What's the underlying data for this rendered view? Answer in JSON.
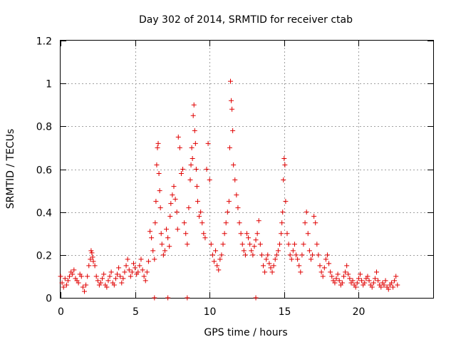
{
  "chart_data": {
    "type": "scatter",
    "title": "Day 302 of 2014, SRMTID for receiver ctab",
    "xlabel": "GPS time / hours",
    "ylabel": "SRMTID / TECUs",
    "xlim": [
      0,
      25
    ],
    "ylim": [
      0,
      1.2
    ],
    "xticks": [
      0,
      5,
      10,
      15,
      20
    ],
    "xtick_labels": [
      "0",
      "5",
      "10",
      "15",
      "20"
    ],
    "yticks": [
      0,
      0.2,
      0.4,
      0.6,
      0.8,
      1.0,
      1.2
    ],
    "ytick_labels": [
      "0",
      "0.2",
      "0.4",
      "0.6",
      "0.8",
      "1",
      "1.2"
    ],
    "grid": true,
    "marker": "plus",
    "color": "#e00000",
    "series": [
      {
        "name": "SRMTID",
        "x": [
          0.0,
          0.1,
          0.2,
          0.3,
          0.4,
          0.5,
          0.6,
          0.7,
          0.8,
          0.9,
          1.0,
          1.1,
          1.2,
          1.3,
          1.4,
          1.5,
          1.6,
          1.7,
          1.8,
          1.9,
          2.0,
          2.05,
          2.1,
          2.15,
          2.2,
          2.3,
          2.4,
          2.5,
          2.6,
          2.7,
          2.8,
          2.9,
          3.0,
          3.1,
          3.2,
          3.3,
          3.4,
          3.5,
          3.6,
          3.7,
          3.8,
          3.9,
          4.0,
          4.1,
          4.2,
          4.3,
          4.4,
          4.5,
          4.6,
          4.7,
          4.8,
          4.9,
          5.0,
          5.1,
          5.2,
          5.3,
          5.4,
          5.5,
          5.6,
          5.7,
          5.8,
          5.9,
          6.0,
          6.1,
          6.2,
          6.3,
          6.35,
          6.4,
          6.45,
          6.5,
          6.55,
          6.6,
          6.65,
          6.7,
          6.75,
          6.8,
          6.9,
          7.0,
          7.1,
          7.2,
          7.3,
          7.35,
          7.4,
          7.5,
          7.6,
          7.7,
          7.8,
          7.85,
          7.9,
          8.0,
          8.1,
          8.2,
          8.3,
          8.4,
          8.5,
          8.6,
          8.7,
          8.75,
          8.8,
          8.85,
          8.9,
          8.95,
          9.0,
          9.05,
          9.1,
          9.15,
          9.2,
          9.3,
          9.4,
          9.5,
          9.6,
          9.7,
          9.8,
          9.9,
          10.0,
          10.1,
          10.2,
          10.3,
          10.4,
          10.5,
          10.6,
          10.7,
          10.8,
          10.9,
          11.0,
          11.1,
          11.2,
          11.3,
          11.35,
          11.4,
          11.45,
          11.5,
          11.55,
          11.6,
          11.7,
          11.8,
          11.9,
          12.0,
          12.1,
          12.2,
          12.3,
          12.4,
          12.5,
          12.6,
          12.7,
          12.8,
          12.9,
          13.0,
          13.1,
          13.2,
          13.3,
          13.4,
          13.5,
          13.6,
          13.7,
          13.8,
          13.9,
          14.0,
          14.1,
          14.2,
          14.3,
          14.4,
          14.5,
          14.6,
          14.7,
          14.8,
          14.85,
          14.9,
          14.95,
          15.0,
          15.05,
          15.1,
          15.2,
          15.3,
          15.4,
          15.5,
          15.6,
          15.7,
          15.8,
          15.9,
          16.0,
          16.1,
          16.2,
          16.3,
          16.4,
          16.5,
          16.6,
          16.7,
          16.8,
          16.9,
          17.0,
          17.1,
          17.2,
          17.3,
          17.4,
          17.5,
          17.6,
          17.7,
          17.8,
          17.9,
          18.0,
          18.1,
          18.2,
          18.3,
          18.4,
          18.5,
          18.6,
          18.7,
          18.8,
          18.9,
          19.0,
          19.1,
          19.2,
          19.3,
          19.4,
          19.5,
          19.6,
          19.7,
          19.8,
          19.9,
          20.0,
          20.1,
          20.2,
          20.3,
          20.4,
          20.5,
          20.6,
          20.7,
          20.8,
          20.9,
          21.0,
          21.1,
          21.2,
          21.3,
          21.4,
          21.5,
          21.6,
          21.7,
          21.8,
          21.9,
          22.0,
          22.1,
          22.2,
          22.3,
          22.4,
          22.5,
          22.6,
          6.3,
          7.2,
          8.5,
          13.1
        ],
        "y": [
          0.1,
          0.07,
          0.05,
          0.09,
          0.06,
          0.08,
          0.1,
          0.12,
          0.11,
          0.13,
          0.09,
          0.08,
          0.07,
          0.11,
          0.1,
          0.05,
          0.03,
          0.06,
          0.1,
          0.15,
          0.18,
          0.22,
          0.21,
          0.19,
          0.17,
          0.15,
          0.1,
          0.08,
          0.06,
          0.07,
          0.09,
          0.11,
          0.06,
          0.05,
          0.08,
          0.1,
          0.12,
          0.07,
          0.06,
          0.09,
          0.11,
          0.14,
          0.1,
          0.07,
          0.09,
          0.12,
          0.15,
          0.18,
          0.13,
          0.1,
          0.12,
          0.16,
          0.14,
          0.11,
          0.12,
          0.15,
          0.18,
          0.13,
          0.1,
          0.08,
          0.12,
          0.17,
          0.31,
          0.28,
          0.22,
          0.18,
          0.35,
          0.45,
          0.62,
          0.7,
          0.72,
          0.58,
          0.5,
          0.42,
          0.3,
          0.25,
          0.2,
          0.22,
          0.32,
          0.28,
          0.24,
          0.38,
          0.44,
          0.48,
          0.52,
          0.46,
          0.4,
          0.32,
          0.75,
          0.7,
          0.58,
          0.6,
          0.35,
          0.3,
          0.25,
          0.42,
          0.55,
          0.62,
          0.7,
          0.65,
          0.85,
          0.9,
          0.78,
          0.72,
          0.6,
          0.52,
          0.45,
          0.38,
          0.4,
          0.35,
          0.3,
          0.28,
          0.6,
          0.72,
          0.55,
          0.25,
          0.2,
          0.17,
          0.22,
          0.15,
          0.13,
          0.18,
          0.2,
          0.25,
          0.3,
          0.35,
          0.4,
          0.45,
          0.7,
          1.01,
          0.92,
          0.88,
          0.78,
          0.62,
          0.55,
          0.48,
          0.42,
          0.35,
          0.3,
          0.25,
          0.22,
          0.2,
          0.3,
          0.28,
          0.25,
          0.22,
          0.2,
          0.24,
          0.27,
          0.3,
          0.36,
          0.25,
          0.2,
          0.15,
          0.12,
          0.18,
          0.2,
          0.16,
          0.14,
          0.12,
          0.15,
          0.18,
          0.2,
          0.22,
          0.25,
          0.3,
          0.35,
          0.4,
          0.55,
          0.65,
          0.62,
          0.45,
          0.3,
          0.25,
          0.2,
          0.18,
          0.22,
          0.25,
          0.2,
          0.18,
          0.15,
          0.12,
          0.2,
          0.25,
          0.35,
          0.4,
          0.3,
          0.22,
          0.18,
          0.2,
          0.38,
          0.35,
          0.25,
          0.2,
          0.15,
          0.12,
          0.1,
          0.14,
          0.18,
          0.2,
          0.16,
          0.12,
          0.1,
          0.08,
          0.07,
          0.09,
          0.11,
          0.08,
          0.06,
          0.07,
          0.1,
          0.12,
          0.15,
          0.11,
          0.09,
          0.07,
          0.08,
          0.06,
          0.05,
          0.07,
          0.09,
          0.11,
          0.08,
          0.06,
          0.07,
          0.09,
          0.1,
          0.08,
          0.06,
          0.05,
          0.07,
          0.09,
          0.12,
          0.08,
          0.06,
          0.05,
          0.07,
          0.06,
          0.08,
          0.05,
          0.04,
          0.06,
          0.07,
          0.05,
          0.08,
          0.1,
          0.06,
          0.0,
          0.0,
          0.0,
          0.0
        ]
      }
    ]
  }
}
